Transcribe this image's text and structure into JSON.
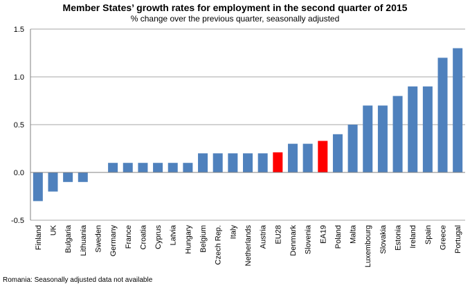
{
  "chart_data": {
    "type": "bar",
    "title": "Member States’ growth rates for employment in the second quarter of 2015",
    "subtitle": "% change over the previous quarter, seasonally adjusted",
    "xlabel": "",
    "ylabel": "",
    "ylim": [
      -0.5,
      1.5
    ],
    "yticks": [
      1.5,
      1.0,
      0.5,
      0.0,
      -0.5
    ],
    "ytick_labels": [
      "1.5",
      "1.0",
      "0.5",
      "0.0",
      "-0.5"
    ],
    "grid": true,
    "categories": [
      "Finland",
      "UK",
      "Bulgaria",
      "Lithuania",
      "Sweden",
      "Germany",
      "France",
      "Croatia",
      "Cyprus",
      "Latvia",
      "Hungary",
      "Belgium",
      "Czech Rep.",
      "Italy",
      "Netherlands",
      "Austria",
      "EU28",
      "Denmark",
      "Slovenia",
      "EA19",
      "Poland",
      "Malta",
      "Luxembourg",
      "Slovakia",
      "Estonia",
      "Ireland",
      "Spain",
      "Greece",
      "Portugal"
    ],
    "values": [
      -0.3,
      -0.2,
      -0.1,
      -0.1,
      null,
      0.1,
      0.1,
      0.1,
      0.1,
      0.1,
      0.1,
      0.2,
      0.2,
      0.2,
      0.2,
      0.2,
      0.21,
      0.3,
      0.3,
      0.33,
      0.4,
      0.5,
      0.7,
      0.7,
      0.8,
      0.9,
      0.9,
      1.2,
      1.3
    ],
    "highlight": [
      "EU28",
      "EA19"
    ],
    "colors": {
      "bar": "#4f81bd",
      "highlight": "#ff0000",
      "grid": "#a6a6a6",
      "axis": "#808080"
    }
  },
  "footnote": "Romania: Seasonally adjusted data not available"
}
